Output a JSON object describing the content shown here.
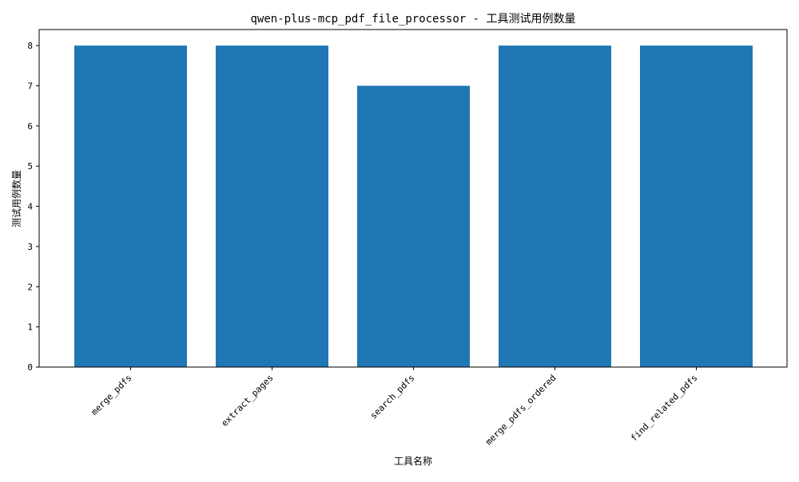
{
  "chart_data": {
    "type": "bar",
    "title": "qwen-plus-mcp_pdf_file_processor - 工具测试用例数量",
    "xlabel": "工具名称",
    "ylabel": "测试用例数量",
    "categories": [
      "merge_pdfs",
      "extract_pages",
      "search_pdfs",
      "merge_pdfs_ordered",
      "find_related_pdfs"
    ],
    "values": [
      8,
      8,
      7,
      8,
      8
    ],
    "ylim": [
      0,
      8.4
    ],
    "yticks": [
      0,
      1,
      2,
      3,
      4,
      5,
      6,
      7,
      8
    ],
    "grid": false,
    "legend": "none",
    "bar_color": "#1f77b4"
  }
}
